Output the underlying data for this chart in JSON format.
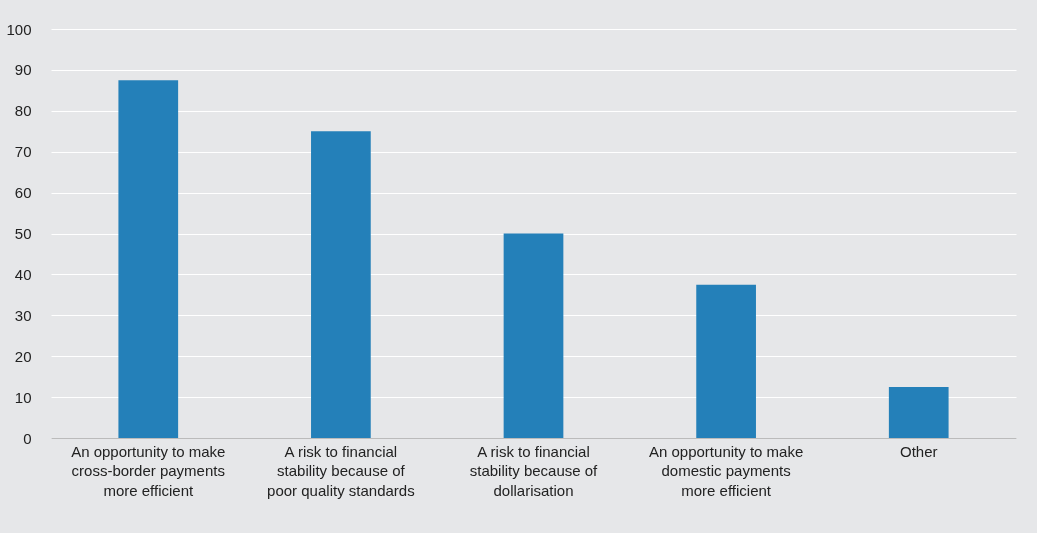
{
  "chart_data": {
    "type": "bar",
    "categories": [
      "An opportunity to make cross-border payments more efficient",
      "A risk to financial stability because of poor quality standards",
      "A risk to financial stability because of dollarisation",
      "An opportunity to make domestic payments more efficient",
      "Other"
    ],
    "values": [
      87.5,
      75,
      50,
      37.5,
      12.5
    ],
    "color": "#2480b9",
    "ylim": [
      0,
      100
    ],
    "yticks": [
      0,
      10,
      20,
      30,
      40,
      50,
      60,
      70,
      80,
      90,
      100
    ],
    "grid": "y"
  }
}
